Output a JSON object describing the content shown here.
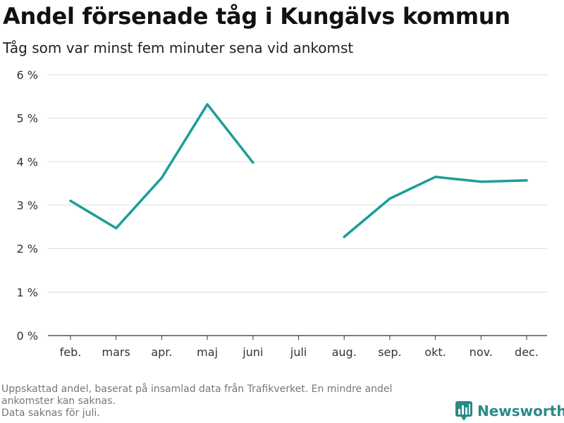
{
  "title": "Andel försenade tåg i Kungälvs kommun",
  "subtitle": "Tåg som var minst fem minuter sena vid ankomst",
  "footnote": {
    "line1": "Uppskattad andel, baserat på insamlad data från Trafikverket. En mindre andel ankomster kan saknas.",
    "line2": "Data saknas för juli."
  },
  "brand": {
    "name": "Newsworthy",
    "icon": "newsworthy-logo-icon",
    "color": "#2a8a86"
  },
  "chart_data": {
    "type": "line",
    "categories": [
      "feb.",
      "mars",
      "apr.",
      "maj",
      "juni",
      "juli",
      "aug.",
      "sep.",
      "okt.",
      "nov.",
      "dec."
    ],
    "series": [
      {
        "values": [
          3.1,
          2.47,
          3.63,
          5.32,
          3.98,
          null,
          2.27,
          3.15,
          3.65,
          3.54,
          3.57
        ],
        "color": "#1a9e96"
      }
    ],
    "ylim": [
      0,
      6
    ],
    "yticks": [
      0,
      1,
      2,
      3,
      4,
      5,
      6
    ],
    "ytick_labels": [
      "0 %",
      "1 %",
      "2 %",
      "3 %",
      "4 %",
      "5 %",
      "6 %"
    ],
    "grid": true,
    "xlabel": "",
    "ylabel": ""
  }
}
